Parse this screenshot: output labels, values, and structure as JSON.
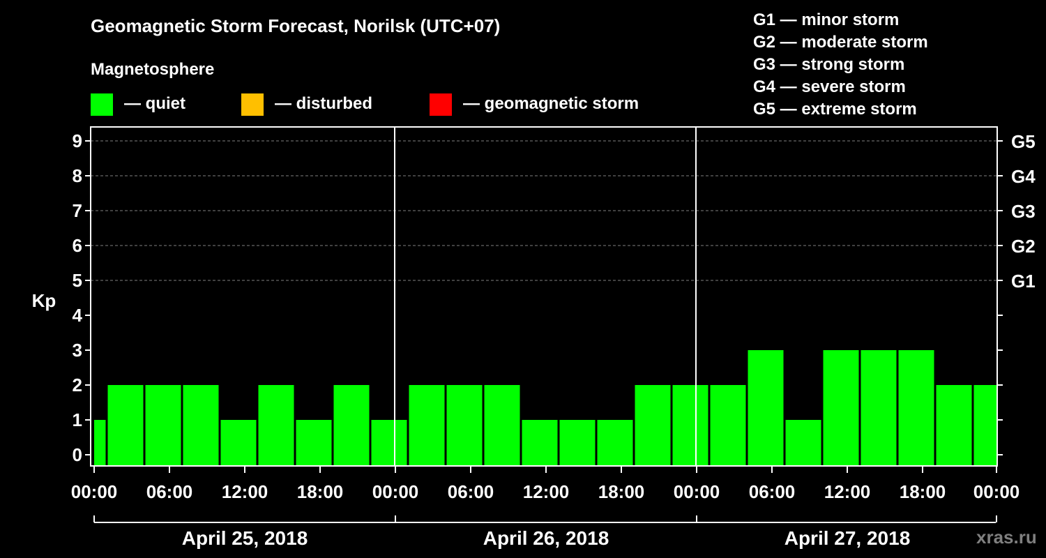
{
  "title": "Geomagnetic Storm Forecast, Norilsk (UTC+07)",
  "magnetosphere": {
    "heading": "Magnetosphere",
    "states": [
      {
        "label": "— quiet",
        "color": "#00ff00"
      },
      {
        "label": "— disturbed",
        "color": "#ffbf00"
      },
      {
        "label": "— geomagnetic storm",
        "color": "#ff0000"
      }
    ]
  },
  "storm_scale": [
    "G1 — minor storm",
    "G2 — moderate storm",
    "G3 — strong storm",
    "G4 — severe storm",
    "G5 — extreme storm"
  ],
  "watermark": "xras.ru",
  "chart_data": {
    "type": "bar",
    "title": "Geomagnetic Storm Forecast, Norilsk (UTC+07)",
    "ylabel": "Kp",
    "ylim": [
      0,
      9
    ],
    "yticks": [
      0,
      1,
      2,
      3,
      4,
      5,
      6,
      7,
      8,
      9
    ],
    "right_axis_labels": [
      {
        "kp": 5,
        "label": "G1"
      },
      {
        "kp": 6,
        "label": "G2"
      },
      {
        "kp": 7,
        "label": "G3"
      },
      {
        "kp": 8,
        "label": "G4"
      },
      {
        "kp": 9,
        "label": "G5"
      }
    ],
    "xticks": [
      "00:00",
      "06:00",
      "12:00",
      "18:00",
      "00:00",
      "06:00",
      "12:00",
      "18:00",
      "00:00",
      "06:00",
      "12:00",
      "18:00",
      "00:00"
    ],
    "days": [
      "April 25, 2018",
      "April 26, 2018",
      "April 27, 2018"
    ],
    "grid": "dashed horizontal lines at Kp 5–9",
    "bar_color": "#00ff00",
    "bars": [
      {
        "start": "April 25 00:00",
        "end": "April 25 01:00",
        "kp": 1
      },
      {
        "start": "April 25 01:00",
        "end": "April 25 04:00",
        "kp": 2
      },
      {
        "start": "April 25 04:00",
        "end": "April 25 07:00",
        "kp": 2
      },
      {
        "start": "April 25 07:00",
        "end": "April 25 10:00",
        "kp": 2
      },
      {
        "start": "April 25 10:00",
        "end": "April 25 13:00",
        "kp": 1
      },
      {
        "start": "April 25 13:00",
        "end": "April 25 16:00",
        "kp": 2
      },
      {
        "start": "April 25 16:00",
        "end": "April 25 19:00",
        "kp": 1
      },
      {
        "start": "April 25 19:00",
        "end": "April 25 22:00",
        "kp": 2
      },
      {
        "start": "April 25 22:00",
        "end": "April 26 01:00",
        "kp": 1
      },
      {
        "start": "April 26 01:00",
        "end": "April 26 04:00",
        "kp": 2
      },
      {
        "start": "April 26 04:00",
        "end": "April 26 07:00",
        "kp": 2
      },
      {
        "start": "April 26 07:00",
        "end": "April 26 10:00",
        "kp": 2
      },
      {
        "start": "April 26 10:00",
        "end": "April 26 13:00",
        "kp": 1
      },
      {
        "start": "April 26 13:00",
        "end": "April 26 16:00",
        "kp": 1
      },
      {
        "start": "April 26 16:00",
        "end": "April 26 19:00",
        "kp": 1
      },
      {
        "start": "April 26 19:00",
        "end": "April 26 22:00",
        "kp": 2
      },
      {
        "start": "April 26 22:00",
        "end": "April 27 01:00",
        "kp": 2
      },
      {
        "start": "April 27 01:00",
        "end": "April 27 04:00",
        "kp": 2
      },
      {
        "start": "April 27 04:00",
        "end": "April 27 07:00",
        "kp": 3
      },
      {
        "start": "April 27 07:00",
        "end": "April 27 10:00",
        "kp": 1
      },
      {
        "start": "April 27 10:00",
        "end": "April 27 13:00",
        "kp": 3
      },
      {
        "start": "April 27 13:00",
        "end": "April 27 16:00",
        "kp": 3
      },
      {
        "start": "April 27 16:00",
        "end": "April 27 19:00",
        "kp": 3
      },
      {
        "start": "April 27 19:00",
        "end": "April 27 22:00",
        "kp": 2
      },
      {
        "start": "April 27 22:00",
        "end": "April 28 00:00",
        "kp": 2
      }
    ]
  }
}
